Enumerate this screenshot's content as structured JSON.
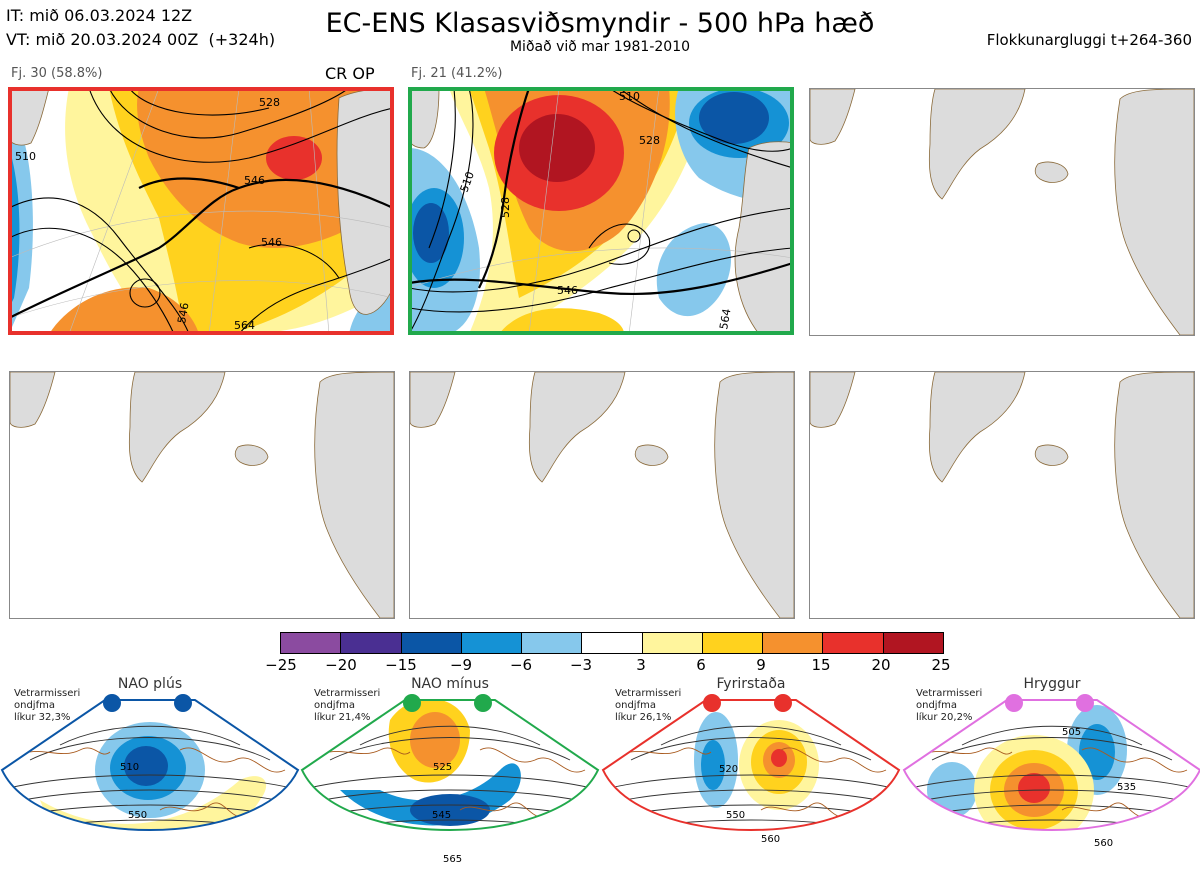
{
  "header": {
    "it_label": "IT: mið 06.03.2024 12Z",
    "vt_label": "VT: mið 20.03.2024 00Z  (+324h)",
    "title": "EC-ENS Klasasviðsmyndir - 500 hPa hæð",
    "subtitle": "Miðað við mar 1981-2010",
    "cluster_window": "Flokkunargluggi t+264-360"
  },
  "panels": [
    {
      "label": "Fj. 30 (58.8%)",
      "tag": "CR OP",
      "frame_color": "#e8312c",
      "contours": [
        "528",
        "546",
        "546",
        "564",
        "546",
        "510"
      ]
    },
    {
      "label": "Fj. 21 (41.2%)",
      "tag": "",
      "frame_color": "#21a94c",
      "contours": [
        "510",
        "528",
        "546",
        "564",
        "528",
        "510"
      ]
    },
    {
      "label": "",
      "tag": ""
    },
    {
      "label": "",
      "tag": ""
    },
    {
      "label": "",
      "tag": ""
    },
    {
      "label": "",
      "tag": ""
    }
  ],
  "colorbar": {
    "ticks": [
      "−25",
      "−20",
      "−15",
      "−9",
      "−6",
      "−3",
      "3",
      "6",
      "9",
      "15",
      "20",
      "25"
    ],
    "colors": [
      "#8b4ba0",
      "#4a2f92",
      "#0b56a6",
      "#1592d5",
      "#86c8ec",
      "#ffffff",
      "#fff59d",
      "#ffd21e",
      "#f5912e",
      "#e8312c",
      "#b11521"
    ]
  },
  "regimes": [
    {
      "name": "NAO plús",
      "note": "Vetrarmisseri\nondjfma\nlíkur 32,3%",
      "color": "#0b56a6",
      "contours": [
        "510",
        "550"
      ]
    },
    {
      "name": "NAO mínus",
      "note": "Vetrarmisseri\nondjfma\nlíkur 21,4%",
      "color": "#21a94c",
      "contours": [
        "525",
        "545",
        "565"
      ]
    },
    {
      "name": "Fyrirstaða",
      "note": "Vetrarmisseri\nondjfma\nlíkur 26,1%",
      "color": "#e8312c",
      "contours": [
        "520",
        "550",
        "560"
      ]
    },
    {
      "name": "Hryggur",
      "note": "Vetrarmisseri\nondjfma\nlíkur 20,2%",
      "color": "#e070e0",
      "contours": [
        "505",
        "535",
        "560"
      ]
    }
  ]
}
